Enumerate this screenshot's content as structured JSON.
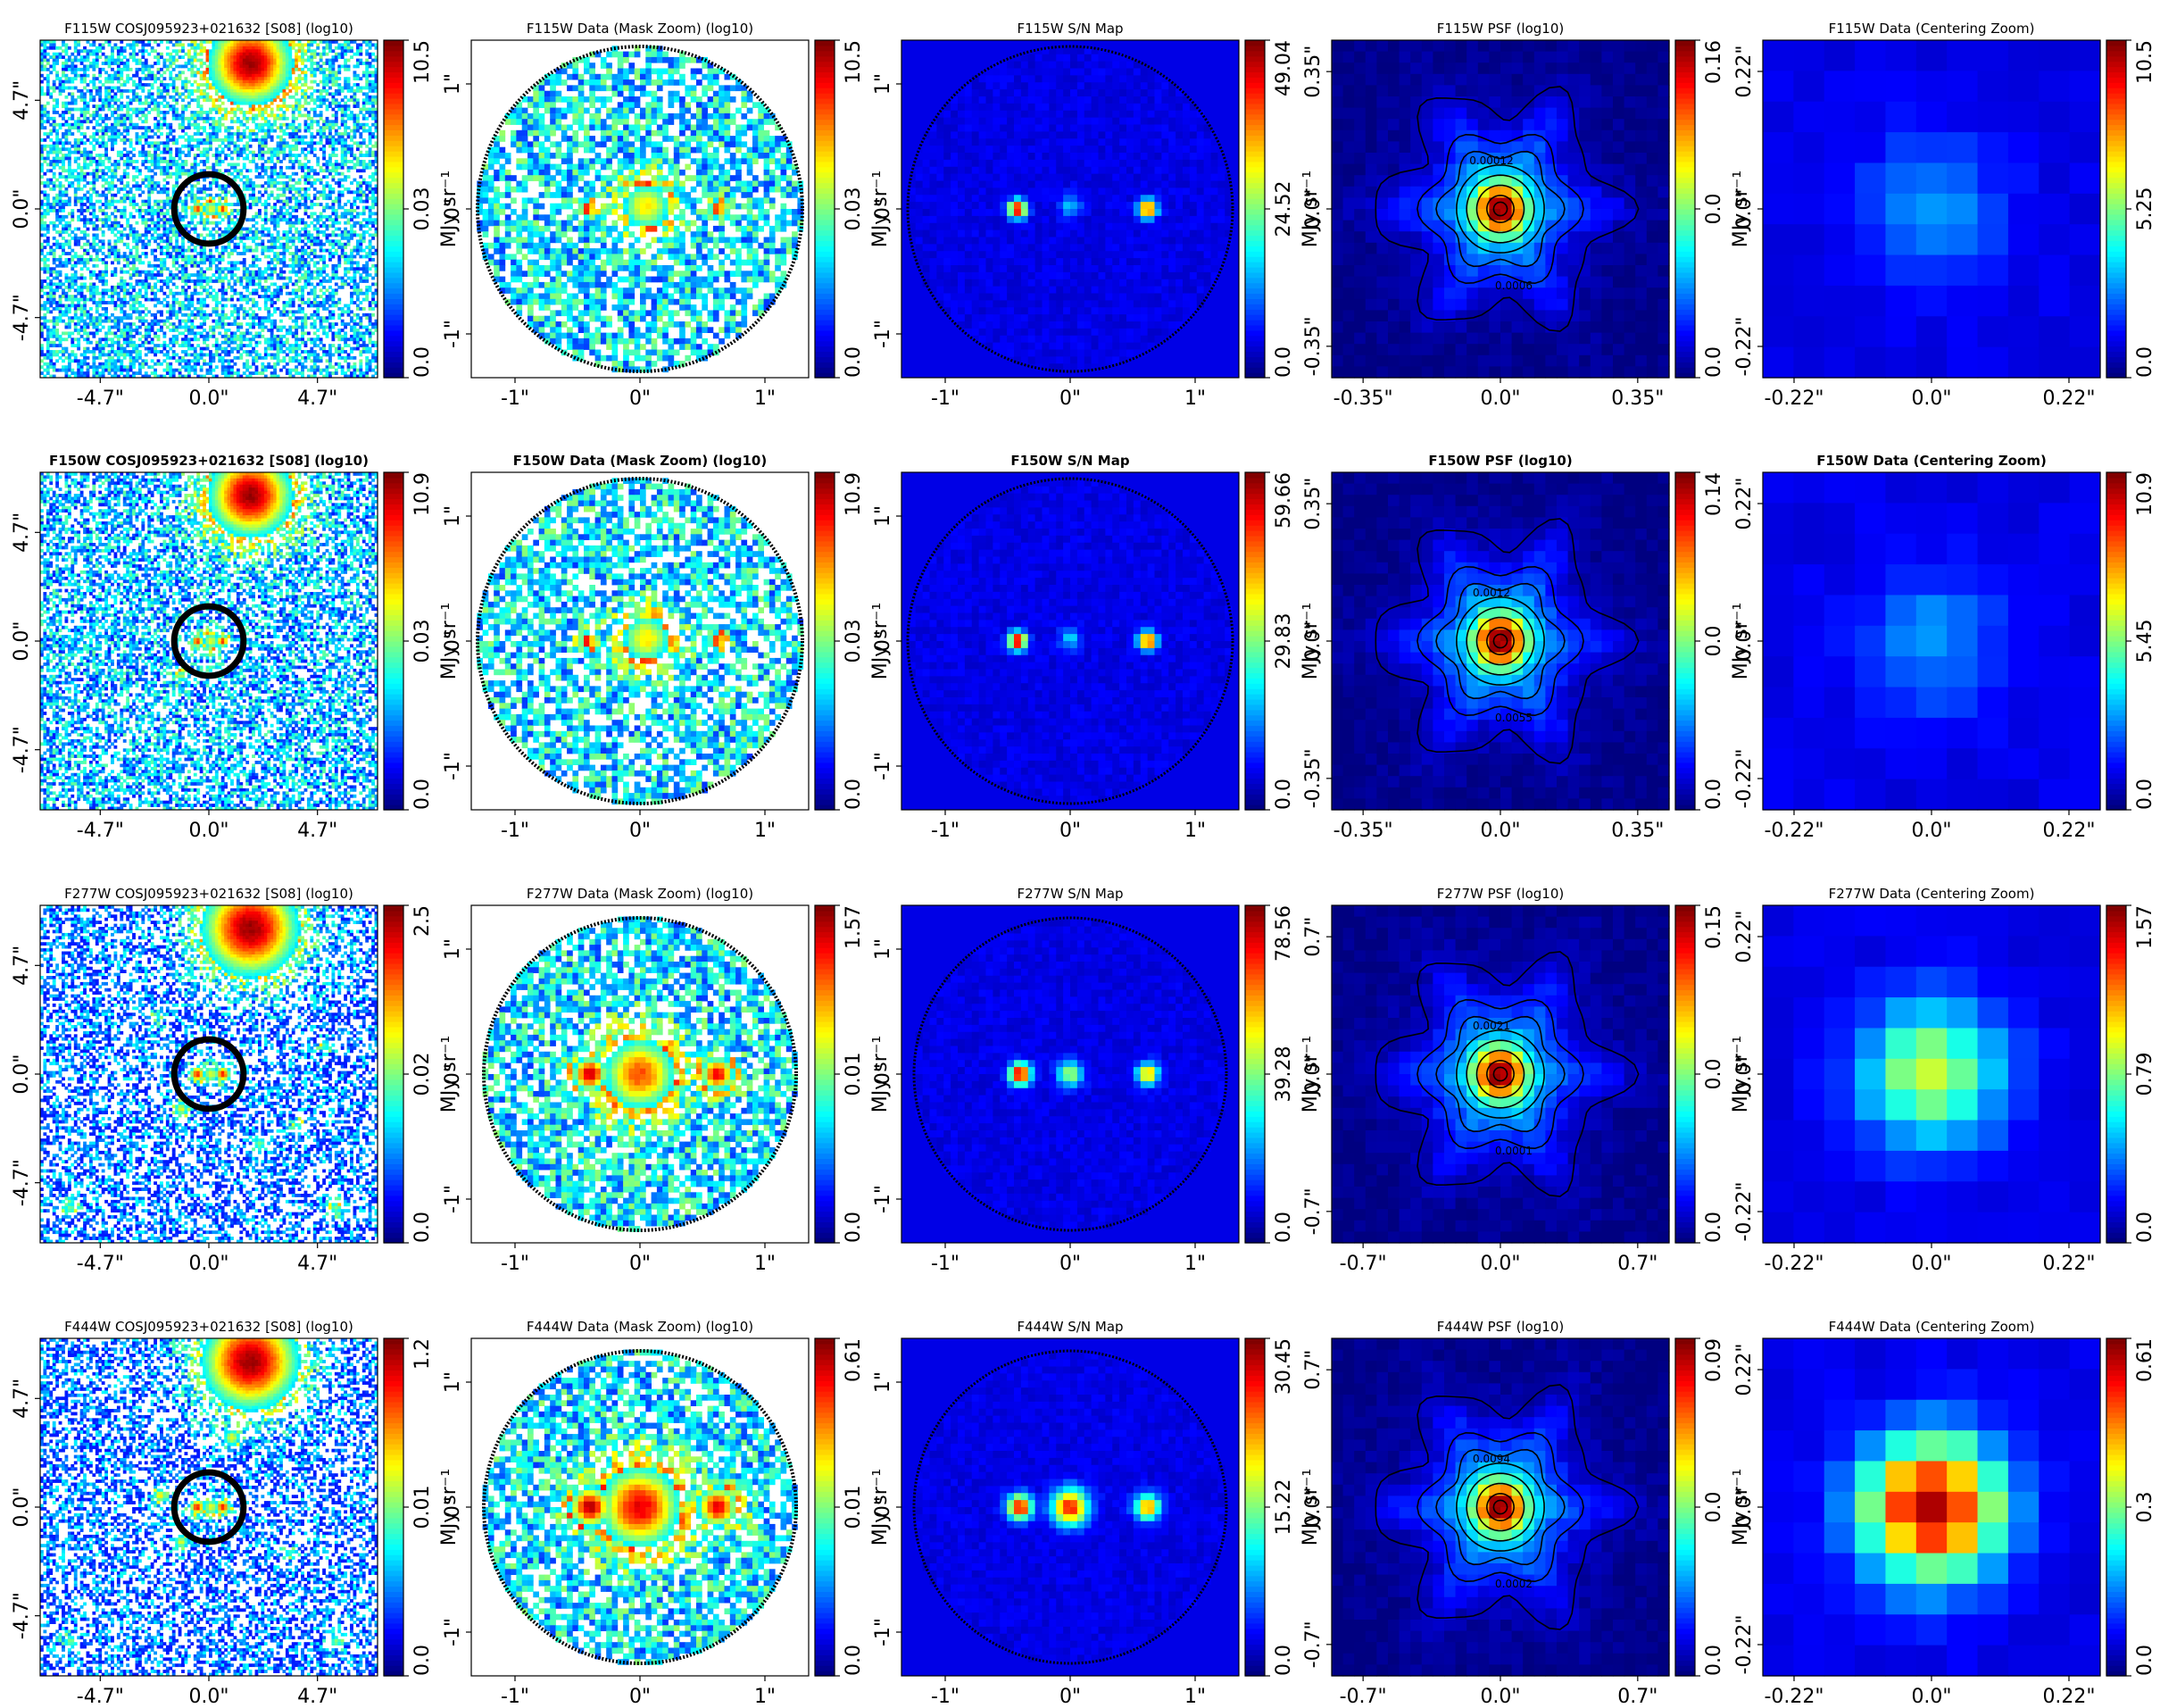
{
  "figure": {
    "colormap": "jet",
    "bad_color": "#ffffff",
    "circle_color": "#000000"
  },
  "chart_data": [
    {
      "type": "heatmap",
      "row": 0,
      "col": 0,
      "kind": "cutout",
      "title": "F115W COSJ095923+021632 [S08] (log10)",
      "title_bold": false,
      "xticks": [
        "-4.7\"",
        "0.0\"",
        "4.7\""
      ],
      "yticks": [
        "4.7\"",
        "0.0\"",
        "-4.7\""
      ],
      "tick_values": [
        -4.7,
        0,
        4.7
      ],
      "extent": [
        -7.3,
        7.3
      ],
      "cbar": {
        "ticks": [
          "0.0",
          "0.03",
          "10.5"
        ],
        "label": "MJy sr⁻¹"
      },
      "sources": [
        {
          "x": 1.8,
          "y": 6.3,
          "peak": 0.97,
          "sigma": 1.3
        },
        {
          "x": -0.5,
          "y": 0,
          "peak": 0.86,
          "sigma": 0.2
        },
        {
          "x": 0.1,
          "y": 0,
          "peak": 0.6,
          "sigma": 0.3
        },
        {
          "x": 0.6,
          "y": 0,
          "peak": 0.85,
          "sigma": 0.2
        }
      ],
      "noise": {
        "density": 0.6,
        "level": 0.32
      },
      "aperture": {
        "x": 0,
        "y": 0,
        "r": 1.5
      }
    },
    {
      "type": "heatmap",
      "row": 0,
      "col": 1,
      "kind": "mask",
      "title": "F115W Data (Mask Zoom) (log10)",
      "title_bold": false,
      "xticks": [
        "-1\"",
        "0\"",
        "1\""
      ],
      "yticks": [
        "1\"",
        "0\"",
        "-1\""
      ],
      "tick_values": [
        -1,
        0,
        1
      ],
      "extent": [
        -1.35,
        1.35
      ],
      "cbar": {
        "ticks": [
          "0.0",
          "0.03",
          "10.5"
        ],
        "label": "MJy sr⁻¹"
      },
      "sources": [
        {
          "x": -0.42,
          "y": 0,
          "peak": 0.95,
          "sigma": 0.05
        },
        {
          "x": 0.05,
          "y": 0.02,
          "peak": 0.65,
          "sigma": 0.16
        },
        {
          "x": 0.62,
          "y": 0,
          "peak": 0.92,
          "sigma": 0.05
        }
      ],
      "noise": {
        "density": 0.7,
        "level": 0.35
      },
      "aperture": {
        "x": 0,
        "y": 0,
        "r": 1.3
      }
    },
    {
      "type": "heatmap",
      "row": 0,
      "col": 2,
      "kind": "snr",
      "title": "F115W S/N Map",
      "title_bold": false,
      "xticks": [
        "-1\"",
        "0\"",
        "1\""
      ],
      "yticks": [
        "1\"",
        "0\"",
        "-1\""
      ],
      "tick_values": [
        -1,
        0,
        1
      ],
      "extent": [
        -1.35,
        1.35
      ],
      "cbar": {
        "ticks": [
          "0.0",
          "24.52",
          "49.04"
        ],
        "label": "MJy sr⁻¹"
      },
      "sources": [
        {
          "x": -0.42,
          "y": 0,
          "peak": 0.95,
          "sigma": 0.05
        },
        {
          "x": 0,
          "y": 0.02,
          "peak": 0.25,
          "sigma": 0.06
        },
        {
          "x": 0.62,
          "y": 0,
          "peak": 0.9,
          "sigma": 0.05
        }
      ],
      "noise": {
        "density": 1.0,
        "level": 0.06
      },
      "aperture": {
        "x": 0,
        "y": 0,
        "r": 1.3
      }
    },
    {
      "type": "heatmap",
      "row": 0,
      "col": 3,
      "kind": "psf",
      "title": "F115W PSF (log10)",
      "title_bold": false,
      "xticks": [
        "-0.35\"",
        "0.0\"",
        "0.35\""
      ],
      "yticks": [
        "0.35\"",
        "0.0\"",
        "-0.35\""
      ],
      "tick_values": [
        -0.35,
        0,
        0.35
      ],
      "extent": [
        -0.43,
        0.43
      ],
      "cbar": {
        "ticks": [
          "0.0",
          "0.0",
          "0.16"
        ],
        "label": "MJy sr⁻¹"
      },
      "contour_labels": [
        "0.00012",
        "0.0006"
      ]
    },
    {
      "type": "heatmap",
      "row": 0,
      "col": 4,
      "kind": "center",
      "title": "F115W Data (Centering Zoom)",
      "title_bold": false,
      "xticks": [
        "-0.22\"",
        "0.0\"",
        "0.22\""
      ],
      "yticks": [
        "0.22\"",
        "0.0\"",
        "-0.22\""
      ],
      "tick_values": [
        -0.22,
        0,
        0.22
      ],
      "extent": [
        -0.27,
        0.27
      ],
      "cbar": {
        "ticks": [
          "0.0",
          "5.25",
          "10.5"
        ],
        "label": "MJy sr⁻¹"
      },
      "center_peak": 0.2
    },
    {
      "type": "heatmap",
      "row": 1,
      "col": 0,
      "kind": "cutout",
      "title": "F150W COSJ095923+021632 [S08] (log10)",
      "title_bold": true,
      "xticks": [
        "-4.7\"",
        "0.0\"",
        "4.7\""
      ],
      "yticks": [
        "4.7\"",
        "0.0\"",
        "-4.7\""
      ],
      "tick_values": [
        -4.7,
        0,
        4.7
      ],
      "extent": [
        -7.3,
        7.3
      ],
      "cbar": {
        "ticks": [
          "0.0",
          "0.03",
          "10.9"
        ],
        "label": "MJy sr⁻¹"
      },
      "sources": [
        {
          "x": 1.8,
          "y": 6.3,
          "peak": 0.97,
          "sigma": 1.3
        },
        {
          "x": -0.5,
          "y": 0,
          "peak": 0.86,
          "sigma": 0.2
        },
        {
          "x": 0.1,
          "y": 0,
          "peak": 0.6,
          "sigma": 0.3
        },
        {
          "x": 0.6,
          "y": 0,
          "peak": 0.85,
          "sigma": 0.2
        },
        {
          "x": -1.2,
          "y": -1.5,
          "peak": 0.55,
          "sigma": 0.2
        }
      ],
      "noise": {
        "density": 0.6,
        "level": 0.3
      },
      "aperture": {
        "x": 0,
        "y": 0,
        "r": 1.5
      }
    },
    {
      "type": "heatmap",
      "row": 1,
      "col": 1,
      "kind": "mask",
      "title": "F150W Data (Mask Zoom) (log10)",
      "title_bold": true,
      "xticks": [
        "-1\"",
        "0\"",
        "1\""
      ],
      "yticks": [
        "1\"",
        "0\"",
        "-1\""
      ],
      "tick_values": [
        -1,
        0,
        1
      ],
      "extent": [
        -1.35,
        1.35
      ],
      "cbar": {
        "ticks": [
          "0.0",
          "0.03",
          "10.9"
        ],
        "label": "MJy sr⁻¹"
      },
      "sources": [
        {
          "x": -0.42,
          "y": 0,
          "peak": 0.95,
          "sigma": 0.05
        },
        {
          "x": 0.05,
          "y": 0.02,
          "peak": 0.65,
          "sigma": 0.16
        },
        {
          "x": 0.62,
          "y": 0,
          "peak": 0.92,
          "sigma": 0.05
        }
      ],
      "noise": {
        "density": 0.7,
        "level": 0.35
      },
      "aperture": {
        "x": 0,
        "y": 0,
        "r": 1.3
      }
    },
    {
      "type": "heatmap",
      "row": 1,
      "col": 2,
      "kind": "snr",
      "title": "F150W S/N Map",
      "title_bold": true,
      "xticks": [
        "-1\"",
        "0\"",
        "1\""
      ],
      "yticks": [
        "1\"",
        "0\"",
        "-1\""
      ],
      "tick_values": [
        -1,
        0,
        1
      ],
      "extent": [
        -1.35,
        1.35
      ],
      "cbar": {
        "ticks": [
          "0.0",
          "29.83",
          "59.66"
        ],
        "label": "MJy sr⁻¹"
      },
      "sources": [
        {
          "x": -0.42,
          "y": 0,
          "peak": 0.95,
          "sigma": 0.05
        },
        {
          "x": 0,
          "y": 0.02,
          "peak": 0.25,
          "sigma": 0.06
        },
        {
          "x": 0.62,
          "y": 0,
          "peak": 0.9,
          "sigma": 0.05
        }
      ],
      "noise": {
        "density": 1.0,
        "level": 0.06
      },
      "aperture": {
        "x": 0,
        "y": 0,
        "r": 1.3
      }
    },
    {
      "type": "heatmap",
      "row": 1,
      "col": 3,
      "kind": "psf",
      "title": "F150W PSF (log10)",
      "title_bold": true,
      "xticks": [
        "-0.35\"",
        "0.0\"",
        "0.35\""
      ],
      "yticks": [
        "0.35\"",
        "0.0\"",
        "-0.35\""
      ],
      "tick_values": [
        -0.35,
        0,
        0.35
      ],
      "extent": [
        -0.43,
        0.43
      ],
      "cbar": {
        "ticks": [
          "0.0",
          "0.0",
          "0.14"
        ],
        "label": "MJy sr⁻¹"
      },
      "contour_labels": [
        "0.0012",
        "0.0055"
      ]
    },
    {
      "type": "heatmap",
      "row": 1,
      "col": 4,
      "kind": "center",
      "title": "F150W Data (Centering Zoom)",
      "title_bold": true,
      "xticks": [
        "-0.22\"",
        "0.0\"",
        "0.22\""
      ],
      "yticks": [
        "0.22\"",
        "0.0\"",
        "-0.22\""
      ],
      "tick_values": [
        -0.22,
        0,
        0.22
      ],
      "extent": [
        -0.27,
        0.27
      ],
      "cbar": {
        "ticks": [
          "0.0",
          "5.45",
          "10.9"
        ],
        "label": "MJy sr⁻¹"
      },
      "center_peak": 0.2
    },
    {
      "type": "heatmap",
      "row": 2,
      "col": 0,
      "kind": "cutout",
      "title": "F277W COSJ095923+021632 [S08] (log10)",
      "title_bold": false,
      "xticks": [
        "-4.7\"",
        "0.0\"",
        "4.7\""
      ],
      "yticks": [
        "4.7\"",
        "0.0\"",
        "-4.7\""
      ],
      "tick_values": [
        -4.7,
        0,
        4.7
      ],
      "extent": [
        -7.3,
        7.3
      ],
      "cbar": {
        "ticks": [
          "0.0",
          "0.02",
          "2.5"
        ],
        "label": "MJy sr⁻¹"
      },
      "sources": [
        {
          "x": 1.8,
          "y": 6.3,
          "peak": 0.97,
          "sigma": 1.5
        },
        {
          "x": -0.5,
          "y": 0,
          "peak": 0.86,
          "sigma": 0.25
        },
        {
          "x": 0.1,
          "y": 0,
          "peak": 0.6,
          "sigma": 0.3
        },
        {
          "x": 0.6,
          "y": 0,
          "peak": 0.85,
          "sigma": 0.25
        },
        {
          "x": -1.2,
          "y": -1.5,
          "peak": 0.6,
          "sigma": 0.25
        },
        {
          "x": 2.2,
          "y": -3.0,
          "peak": 0.5,
          "sigma": 0.25
        },
        {
          "x": -6.0,
          "y": -5.8,
          "peak": 0.5,
          "sigma": 0.25
        },
        {
          "x": 5.5,
          "y": -5.8,
          "peak": 0.5,
          "sigma": 0.25
        },
        {
          "x": 5.0,
          "y": 1.2,
          "peak": 0.45,
          "sigma": 0.2
        },
        {
          "x": 3.9,
          "y": -2.2,
          "peak": 0.45,
          "sigma": 0.2
        },
        {
          "x": -2.2,
          "y": 2.5,
          "peak": 0.4,
          "sigma": 0.2
        }
      ],
      "noise": {
        "density": 0.5,
        "level": 0.22
      },
      "aperture": {
        "x": 0,
        "y": 0,
        "r": 1.5
      }
    },
    {
      "type": "heatmap",
      "row": 2,
      "col": 1,
      "kind": "mask",
      "title": "F277W Data (Mask Zoom) (log10)",
      "title_bold": false,
      "xticks": [
        "-1\"",
        "0\"",
        "1\""
      ],
      "yticks": [
        "1\"",
        "0\"",
        "-1\""
      ],
      "tick_values": [
        -1,
        0,
        1
      ],
      "extent": [
        -1.35,
        1.35
      ],
      "cbar": {
        "ticks": [
          "0.0",
          "0.01",
          "1.57"
        ],
        "label": "MJy sr⁻¹"
      },
      "sources": [
        {
          "x": -0.4,
          "y": 0,
          "peak": 0.95,
          "sigma": 0.1
        },
        {
          "x": 0,
          "y": 0,
          "peak": 0.8,
          "sigma": 0.22
        },
        {
          "x": 0.62,
          "y": 0,
          "peak": 0.9,
          "sigma": 0.1
        }
      ],
      "noise": {
        "density": 0.75,
        "level": 0.35
      },
      "aperture": {
        "x": 0,
        "y": 0,
        "r": 1.25
      }
    },
    {
      "type": "heatmap",
      "row": 2,
      "col": 2,
      "kind": "snr",
      "title": "F277W S/N Map",
      "title_bold": false,
      "xticks": [
        "-1\"",
        "0\"",
        "1\""
      ],
      "yticks": [
        "1\"",
        "0\"",
        "-1\""
      ],
      "tick_values": [
        -1,
        0,
        1
      ],
      "extent": [
        -1.35,
        1.35
      ],
      "cbar": {
        "ticks": [
          "0.0",
          "39.28",
          "78.56"
        ],
        "label": "MJy sr⁻¹"
      },
      "sources": [
        {
          "x": -0.4,
          "y": 0,
          "peak": 0.95,
          "sigma": 0.06
        },
        {
          "x": 0,
          "y": 0,
          "peak": 0.5,
          "sigma": 0.07
        },
        {
          "x": 0.62,
          "y": 0,
          "peak": 0.7,
          "sigma": 0.06
        }
      ],
      "noise": {
        "density": 1.0,
        "level": 0.06
      },
      "aperture": {
        "x": 0,
        "y": 0,
        "r": 1.25
      }
    },
    {
      "type": "heatmap",
      "row": 2,
      "col": 3,
      "kind": "psf",
      "title": "F277W PSF (log10)",
      "title_bold": false,
      "xticks": [
        "-0.7\"",
        "0.0\"",
        "0.7\""
      ],
      "yticks": [
        "0.7\"",
        "0.0\"",
        "-0.7\""
      ],
      "tick_values": [
        -0.7,
        0,
        0.7
      ],
      "extent": [
        -0.86,
        0.86
      ],
      "cbar": {
        "ticks": [
          "0.0",
          "0.0",
          "0.15"
        ],
        "label": "MJy sr⁻¹"
      },
      "contour_labels": [
        "0.0021",
        "0.0001"
      ]
    },
    {
      "type": "heatmap",
      "row": 2,
      "col": 4,
      "kind": "center",
      "title": "F277W Data (Centering Zoom)",
      "title_bold": false,
      "xticks": [
        "-0.22\"",
        "0.0\"",
        "0.22\""
      ],
      "yticks": [
        "0.22\"",
        "0.0\"",
        "-0.22\""
      ],
      "tick_values": [
        -0.22,
        0,
        0.22
      ],
      "extent": [
        -0.27,
        0.27
      ],
      "cbar": {
        "ticks": [
          "0.0",
          "0.79",
          "1.57"
        ],
        "label": "MJy sr⁻¹"
      },
      "center_peak": 0.55
    },
    {
      "type": "heatmap",
      "row": 3,
      "col": 0,
      "kind": "cutout",
      "title": "F444W COSJ095923+021632 [S08] (log10)",
      "title_bold": false,
      "xticks": [
        "-4.7\"",
        "0.0\"",
        "4.7\""
      ],
      "yticks": [
        "4.7\"",
        "0.0\"",
        "-4.7\""
      ],
      "tick_values": [
        -4.7,
        0,
        4.7
      ],
      "extent": [
        -7.3,
        7.3
      ],
      "cbar": {
        "ticks": [
          "0.0",
          "0.01",
          "1.2"
        ],
        "label": "MJy sr⁻¹"
      },
      "sources": [
        {
          "x": 1.8,
          "y": 6.3,
          "peak": 0.97,
          "sigma": 1.5
        },
        {
          "x": -0.5,
          "y": 0,
          "peak": 0.86,
          "sigma": 0.25
        },
        {
          "x": 0.1,
          "y": 0,
          "peak": 0.6,
          "sigma": 0.3
        },
        {
          "x": 0.6,
          "y": 0,
          "peak": 0.85,
          "sigma": 0.25
        },
        {
          "x": -1.2,
          "y": -1.5,
          "peak": 0.6,
          "sigma": 0.25
        },
        {
          "x": 1.0,
          "y": 3.0,
          "peak": 0.6,
          "sigma": 0.3
        },
        {
          "x": -2.1,
          "y": 0.5,
          "peak": 0.65,
          "sigma": 0.25
        },
        {
          "x": -6.0,
          "y": -5.8,
          "peak": 0.5,
          "sigma": 0.25
        },
        {
          "x": 5.5,
          "y": -5.8,
          "peak": 0.5,
          "sigma": 0.25
        },
        {
          "x": 3.5,
          "y": -2.0,
          "peak": 0.45,
          "sigma": 0.2
        }
      ],
      "noise": {
        "density": 0.5,
        "level": 0.22
      },
      "aperture": {
        "x": 0,
        "y": 0,
        "r": 1.5
      }
    },
    {
      "type": "heatmap",
      "row": 3,
      "col": 1,
      "kind": "mask",
      "title": "F444W Data (Mask Zoom) (log10)",
      "title_bold": false,
      "xticks": [
        "-1\"",
        "0\"",
        "1\""
      ],
      "yticks": [
        "1\"",
        "0\"",
        "-1\""
      ],
      "tick_values": [
        -1,
        0,
        1
      ],
      "extent": [
        -1.35,
        1.35
      ],
      "cbar": {
        "ticks": [
          "0.0",
          "0.01",
          "0.61"
        ],
        "label": "MJy sr⁻¹"
      },
      "sources": [
        {
          "x": -0.4,
          "y": 0,
          "peak": 0.95,
          "sigma": 0.12
        },
        {
          "x": 0,
          "y": 0,
          "peak": 0.9,
          "sigma": 0.24
        },
        {
          "x": 0.62,
          "y": 0,
          "peak": 0.9,
          "sigma": 0.12
        }
      ],
      "noise": {
        "density": 0.75,
        "level": 0.35
      },
      "aperture": {
        "x": 0,
        "y": 0,
        "r": 1.25
      }
    },
    {
      "type": "heatmap",
      "row": 3,
      "col": 2,
      "kind": "snr",
      "title": "F444W S/N Map",
      "title_bold": false,
      "xticks": [
        "-1\"",
        "0\"",
        "1\""
      ],
      "yticks": [
        "1\"",
        "0\"",
        "-1\""
      ],
      "tick_values": [
        -1,
        0,
        1
      ],
      "extent": [
        -1.35,
        1.35
      ],
      "cbar": {
        "ticks": [
          "0.0",
          "15.22",
          "30.45"
        ],
        "label": "MJy sr⁻¹"
      },
      "sources": [
        {
          "x": -0.4,
          "y": 0,
          "peak": 0.9,
          "sigma": 0.07
        },
        {
          "x": 0,
          "y": 0,
          "peak": 0.85,
          "sigma": 0.1
        },
        {
          "x": 0.62,
          "y": 0,
          "peak": 0.75,
          "sigma": 0.07
        }
      ],
      "noise": {
        "density": 1.0,
        "level": 0.06
      },
      "aperture": {
        "x": 0,
        "y": 0,
        "r": 1.25
      }
    },
    {
      "type": "heatmap",
      "row": 3,
      "col": 3,
      "kind": "psf",
      "title": "F444W PSF (log10)",
      "title_bold": false,
      "xticks": [
        "-0.7\"",
        "0.0\"",
        "0.7\""
      ],
      "yticks": [
        "0.7\"",
        "0.0\"",
        "-0.7\""
      ],
      "tick_values": [
        -0.7,
        0,
        0.7
      ],
      "extent": [
        -0.86,
        0.86
      ],
      "cbar": {
        "ticks": [
          "0.0",
          "0.0",
          "0.09"
        ],
        "label": "MJy sr⁻¹"
      },
      "contour_labels": [
        "0.0094",
        "0.0002"
      ]
    },
    {
      "type": "heatmap",
      "row": 3,
      "col": 4,
      "kind": "center",
      "title": "F444W Data (Centering Zoom)",
      "title_bold": false,
      "xticks": [
        "-0.22\"",
        "0.0\"",
        "0.22\""
      ],
      "yticks": [
        "0.22\"",
        "0.0\"",
        "-0.22\""
      ],
      "tick_values": [
        -0.22,
        0,
        0.22
      ],
      "extent": [
        -0.27,
        0.27
      ],
      "cbar": {
        "ticks": [
          "0.0",
          "0.3",
          "0.61"
        ],
        "label": "MJy sr⁻¹"
      },
      "center_peak": 1.0
    }
  ]
}
